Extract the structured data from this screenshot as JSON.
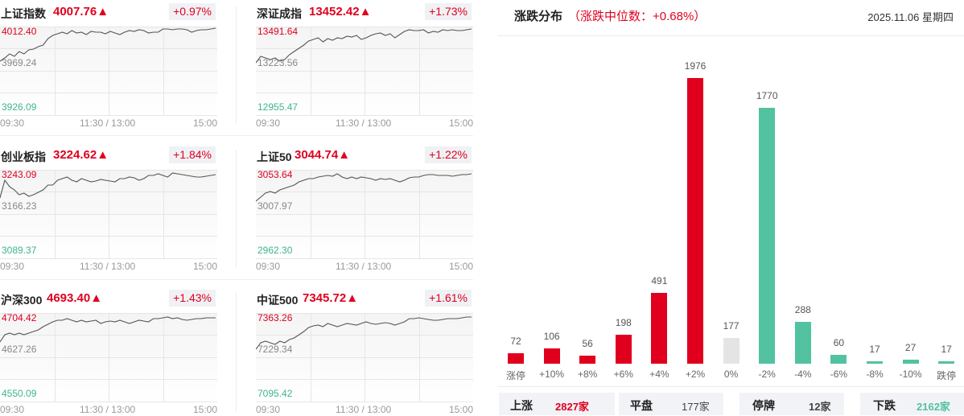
{
  "indices": [
    {
      "name": "上证指数",
      "price": "4007.76▲",
      "change": "+0.97%",
      "high": "4012.40",
      "mid": "3969.24",
      "low": "3926.09",
      "times": [
        "09:30",
        "11:30 / 13:00",
        "15:00"
      ]
    },
    {
      "name": "深证成指",
      "price": "13452.42▲",
      "change": "+1.73%",
      "high": "13491.64",
      "mid": "13223.56",
      "low": "12955.47",
      "times": [
        "09:30",
        "11:30 / 13:00",
        "15:00"
      ]
    },
    {
      "name": "创业板指",
      "price": "3224.62▲",
      "change": "+1.84%",
      "high": "3243.09",
      "mid": "3166.23",
      "low": "3089.37",
      "times": [
        "09:30",
        "11:30 / 13:00",
        "15:00"
      ]
    },
    {
      "name": "上证50",
      "price": "3044.74▲",
      "change": "+1.22%",
      "high": "3053.64",
      "mid": "3007.97",
      "low": "2962.30",
      "times": [
        "09:30",
        "11:30 / 13:00",
        "15:00"
      ]
    },
    {
      "name": "沪深300",
      "price": "4693.40▲",
      "change": "+1.43%",
      "high": "4704.42",
      "mid": "4627.26",
      "low": "4550.09",
      "times": [
        "09:30",
        "11:30 / 13:00",
        "15:00"
      ]
    },
    {
      "name": "中证500",
      "price": "7345.72▲",
      "change": "+1.61%",
      "high": "7363.26",
      "mid": "7229.34",
      "low": "7095.42",
      "times": [
        "09:30",
        "11:30 / 13:00",
        "15:00"
      ]
    }
  ],
  "distribution": {
    "title": "涨跌分布",
    "median": "（涨跌中位数：+0.68%）",
    "date": "2025.11.06 星期四",
    "colors": {
      "up": "#e0001e",
      "flat": "#e4e4e4",
      "down": "#52c2a0"
    },
    "summary": [
      {
        "label": "上涨",
        "value": "2827家",
        "color": "#e0001e"
      },
      {
        "label": "平盘",
        "value": "177家",
        "color": "#444444"
      },
      {
        "label": "停牌",
        "value": "12家",
        "color": "#444444"
      },
      {
        "label": "下跌",
        "value": "2162家",
        "color": "#52c2a0"
      }
    ]
  },
  "chart_data": {
    "type": "bar",
    "title": "涨跌分布",
    "categories": [
      "涨停",
      "+10%",
      "+8%",
      "+6%",
      "+4%",
      "+2%",
      "0%",
      "-2%",
      "-4%",
      "-6%",
      "-8%",
      "-10%",
      "跌停"
    ],
    "values": [
      72,
      106,
      56,
      198,
      491,
      1976,
      177,
      1770,
      288,
      60,
      17,
      27,
      17
    ],
    "bar_colors": [
      "up",
      "up",
      "up",
      "up",
      "up",
      "up",
      "flat",
      "down",
      "down",
      "down",
      "down",
      "down",
      "down"
    ],
    "xlabel": "",
    "ylabel": "",
    "grid": false,
    "legend": "none",
    "labels": {
      "v0": "72",
      "v1": "106",
      "v2": "56",
      "v3": "198",
      "v4": "491",
      "v5": "1976",
      "v6": "177",
      "v7": "1770",
      "v8": "288",
      "v9": "60",
      "v10": "17",
      "v11": "27",
      "v12": "17"
    }
  }
}
